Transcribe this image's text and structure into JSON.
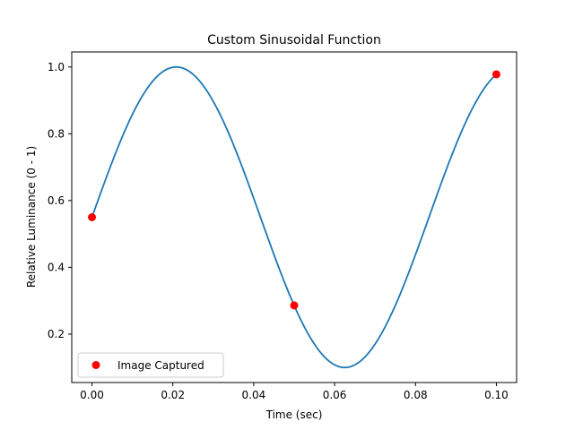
{
  "chart_data": {
    "type": "line",
    "title": "Custom Sinusoidal Function",
    "xlabel": "Time (sec)",
    "ylabel": "Relative Luminance (0 - 1)",
    "xlim": [
      -0.005,
      0.105
    ],
    "ylim": [
      0.055,
      1.045
    ],
    "xticks": [
      0.0,
      0.02,
      0.04,
      0.06,
      0.08,
      0.1
    ],
    "xtick_labels": [
      "0.00",
      "0.02",
      "0.04",
      "0.06",
      "0.08",
      "0.10"
    ],
    "yticks": [
      0.2,
      0.4,
      0.6,
      0.8,
      1.0
    ],
    "ytick_labels": [
      "0.2",
      "0.4",
      "0.6",
      "0.8",
      "1.0"
    ],
    "grid": false,
    "legend_position": "lower-left",
    "series": [
      {
        "type": "line",
        "color": "#1f77b4",
        "function": {
          "form": "offset + amplitude * sin(2*pi*frequency*t + phase)",
          "offset": 0.55,
          "amplitude": 0.45,
          "frequency": 12.0,
          "phase": 0.0,
          "t_range": [
            0.0,
            0.1
          ]
        }
      },
      {
        "type": "scatter",
        "name": "Image Captured",
        "color": "#ff0000",
        "x": [
          0.0,
          0.05,
          0.1
        ],
        "y": [
          0.55,
          0.286,
          0.978
        ]
      }
    ]
  }
}
